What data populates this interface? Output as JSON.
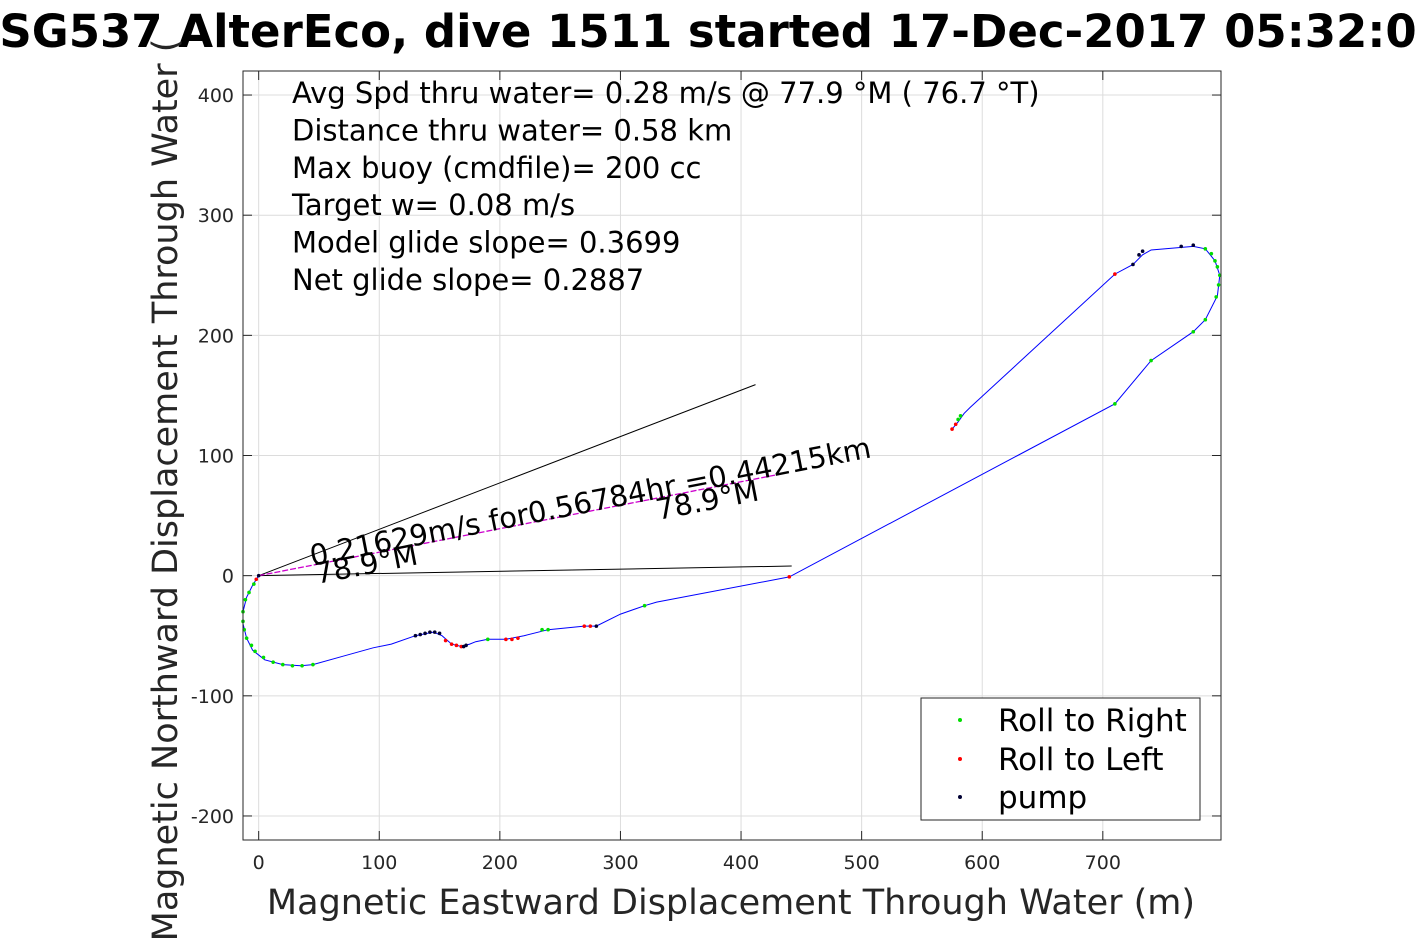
{
  "chart_data": {
    "type": "line",
    "title": "SG537 AlterEco, dive 1511 started 17-Dec-2017 05:32:0",
    "xlabel": "Magnetic Eastward Displacement Through Water (m)",
    "ylabel": "Magnetic Northward Displacement Through Water (",
    "xlim": [
      -13,
      798
    ],
    "ylim": [
      -220,
      420
    ],
    "xticks": [
      0,
      100,
      200,
      300,
      400,
      500,
      600,
      700
    ],
    "yticks": [
      -200,
      -100,
      0,
      100,
      200,
      300,
      400
    ],
    "grid": true,
    "legend_placement": "bottom-right",
    "colors": {
      "track": "#0000ff",
      "roll_right": "#00dd00",
      "roll_left": "#ff0000",
      "pump": "#000033",
      "bearing": "#cc00cc",
      "cone": "#000000"
    },
    "stats": [
      "Avg Spd thru water=  0.28 m/s @  77.9 °M ( 76.7 °T)",
      "Distance thru water=  0.58 km",
      "Max buoy (cmdfile)= 200 cc",
      "Target w= 0.08 m/s",
      "Model glide slope= 0.3699",
      "Net glide slope= 0.2887"
    ],
    "annotations": {
      "speed": "0.21629m/s for0.56784hr =0.44215km",
      "heading_start": "78.9°M",
      "heading_mid": "78.9°M"
    },
    "track": {
      "name": "track",
      "points": [
        [
          0,
          0
        ],
        [
          -5,
          -8
        ],
        [
          -10,
          -18
        ],
        [
          -13,
          -30
        ],
        [
          -13,
          -40
        ],
        [
          -10,
          -52
        ],
        [
          -5,
          -62
        ],
        [
          5,
          -70
        ],
        [
          20,
          -74
        ],
        [
          35,
          -75
        ],
        [
          45,
          -74
        ],
        [
          70,
          -67
        ],
        [
          95,
          -60
        ],
        [
          110,
          -57
        ],
        [
          130,
          -50
        ],
        [
          145,
          -47
        ],
        [
          152,
          -50
        ],
        [
          160,
          -57
        ],
        [
          168,
          -59
        ],
        [
          175,
          -57
        ],
        [
          180,
          -55
        ],
        [
          190,
          -53
        ],
        [
          205,
          -53
        ],
        [
          220,
          -50
        ],
        [
          240,
          -45
        ],
        [
          270,
          -42
        ],
        [
          280,
          -42
        ],
        [
          300,
          -32
        ],
        [
          320,
          -25
        ],
        [
          330,
          -22
        ],
        [
          440,
          -1
        ],
        [
          710,
          143
        ],
        [
          740,
          179
        ],
        [
          775,
          203
        ],
        [
          785,
          213
        ],
        [
          795,
          233
        ],
        [
          797,
          250
        ],
        [
          793,
          262
        ],
        [
          785,
          272
        ],
        [
          775,
          274
        ],
        [
          740,
          271
        ],
        [
          733,
          267
        ],
        [
          725,
          259
        ],
        [
          710,
          251
        ],
        [
          590,
          140
        ],
        [
          585,
          135
        ],
        [
          580,
          128
        ],
        [
          575,
          122
        ]
      ]
    },
    "bearing_line": {
      "name": "bearing",
      "x": [
        0,
        435
      ],
      "y": [
        0,
        85
      ]
    },
    "cone_lines": [
      {
        "x": [
          0,
          412
        ],
        "y": [
          0,
          159
        ]
      },
      {
        "x": [
          0,
          442
        ],
        "y": [
          0,
          8
        ]
      }
    ],
    "series": [
      {
        "name": "Roll to Right",
        "points": [
          [
            -4,
            -7
          ],
          [
            -8,
            -14
          ],
          [
            -11,
            -20
          ],
          [
            -13,
            -30
          ],
          [
            -13,
            -38
          ],
          [
            -12,
            -45
          ],
          [
            -10,
            -52
          ],
          [
            -6,
            -58
          ],
          [
            -3,
            -63
          ],
          [
            4,
            -68
          ],
          [
            12,
            -72
          ],
          [
            20,
            -74
          ],
          [
            28,
            -75
          ],
          [
            36,
            -75
          ],
          [
            45,
            -74
          ],
          [
            190,
            -53
          ],
          [
            235,
            -45
          ],
          [
            240,
            -45
          ],
          [
            320,
            -25
          ],
          [
            580,
            130
          ],
          [
            582,
            133
          ],
          [
            710,
            143
          ],
          [
            740,
            179
          ],
          [
            775,
            203
          ],
          [
            785,
            213
          ],
          [
            794,
            232
          ],
          [
            796,
            242
          ],
          [
            797,
            250
          ],
          [
            795,
            257
          ],
          [
            793,
            262
          ],
          [
            790,
            268
          ],
          [
            785,
            272
          ]
        ]
      },
      {
        "name": "Roll to Left",
        "points": [
          [
            -2,
            -3
          ],
          [
            155,
            -54
          ],
          [
            160,
            -57
          ],
          [
            164,
            -58
          ],
          [
            168,
            -59
          ],
          [
            205,
            -53
          ],
          [
            210,
            -53
          ],
          [
            215,
            -52
          ],
          [
            270,
            -42
          ],
          [
            275,
            -42
          ],
          [
            440,
            -1
          ],
          [
            710,
            251
          ],
          [
            575,
            122
          ],
          [
            578,
            126
          ]
        ]
      },
      {
        "name": "pump",
        "points": [
          [
            0,
            0
          ],
          [
            130,
            -50
          ],
          [
            134,
            -49
          ],
          [
            138,
            -48
          ],
          [
            142,
            -47
          ],
          [
            146,
            -47
          ],
          [
            150,
            -48
          ],
          [
            170,
            -59
          ],
          [
            172,
            -58
          ],
          [
            280,
            -42
          ],
          [
            725,
            259
          ],
          [
            730,
            267
          ],
          [
            733,
            270
          ],
          [
            765,
            274
          ],
          [
            775,
            275
          ]
        ]
      }
    ]
  }
}
